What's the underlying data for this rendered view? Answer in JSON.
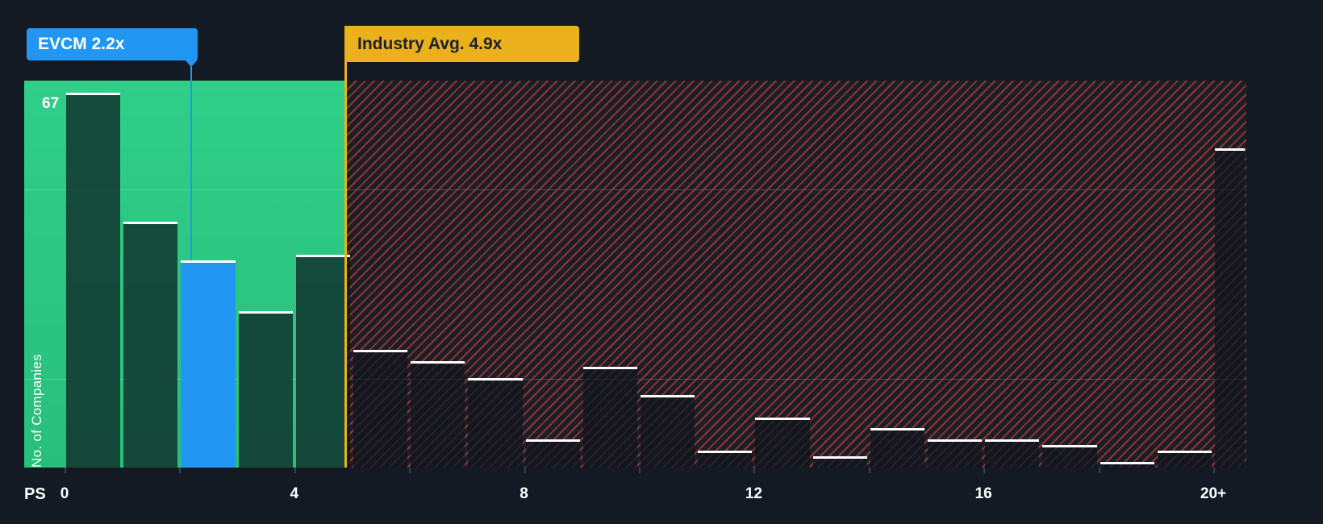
{
  "callouts": {
    "company": {
      "label": "EVCM 2.2x",
      "color": "#2196f3"
    },
    "industry": {
      "label": "Industry Avg. 4.9x",
      "color": "#ebb11d"
    }
  },
  "axis": {
    "y_top_label": "67",
    "y_axis_title": "No. of Companies",
    "x_axis_title": "PS"
  },
  "chart_data": {
    "type": "bar",
    "xlabel": "PS",
    "ylabel": "No. of Companies",
    "ylim": [
      0,
      67
    ],
    "grid": "faint-horizontal",
    "legend": "none",
    "x_bins": [
      "0-1",
      "1-2",
      "2-3",
      "3-4",
      "4-5",
      "5-6",
      "6-7",
      "7-8",
      "8-9",
      "9-10",
      "10-11",
      "11-12",
      "12-13",
      "13-14",
      "14-15",
      "15-16",
      "16-17",
      "17-18",
      "18-19",
      "19-20",
      "20+"
    ],
    "values": [
      67,
      44,
      37,
      28,
      38,
      21,
      19,
      16,
      5,
      18,
      13,
      3,
      9,
      2,
      7,
      5,
      5,
      4,
      1,
      3,
      57
    ],
    "highlight_bin_index": 2,
    "company_marker": {
      "label": "EVCM 2.2x",
      "x": 2.2
    },
    "industry_average": {
      "label": "Industry Avg. 4.9x",
      "x": 4.9
    },
    "x_ticks": [
      {
        "value": 0,
        "label": "0"
      },
      {
        "value": 4,
        "label": "4"
      },
      {
        "value": 8,
        "label": "8"
      },
      {
        "value": 12,
        "label": "12"
      },
      {
        "value": 16,
        "label": "16"
      },
      {
        "value": 20,
        "label": "20+"
      }
    ],
    "colors": {
      "background": "#141a23",
      "below_average_region": "#2bc783",
      "above_average_hatch": "#e23e2f",
      "bar_fill": "#101820",
      "highlight_bar": "#2196f3",
      "bar_top_line": "#ffffff",
      "industry_line": "#ebb11d"
    }
  }
}
